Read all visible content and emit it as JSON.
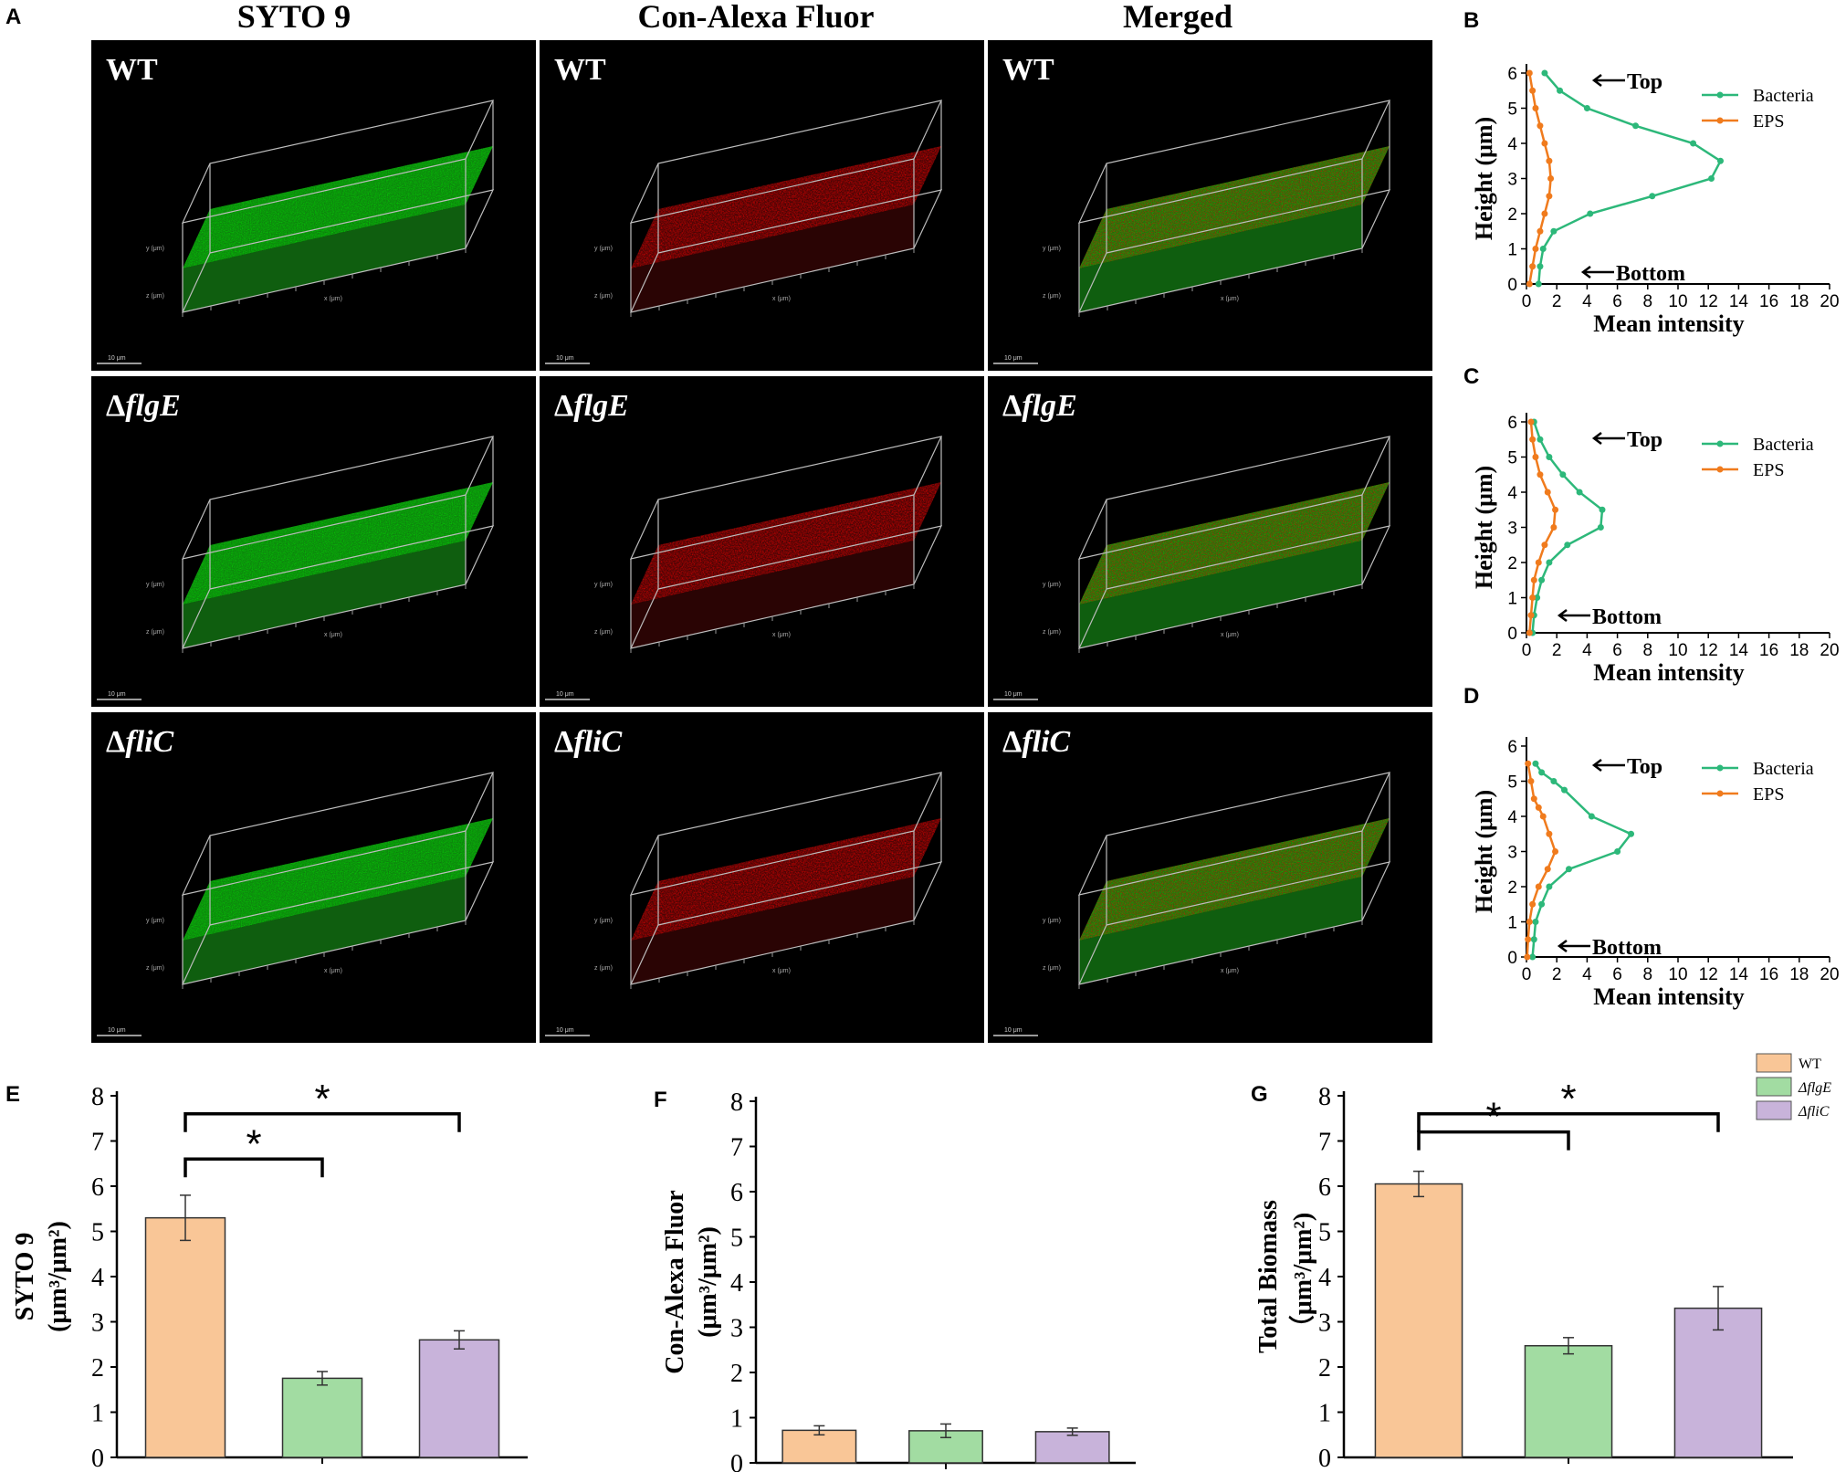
{
  "panel_letters": {
    "A": "A",
    "B": "B",
    "C": "C",
    "D": "D",
    "E": "E",
    "F": "F",
    "G": "G"
  },
  "columns": [
    "SYTO 9",
    "Con-Alexa Fluor",
    "Merged"
  ],
  "rows": [
    {
      "label": "WT",
      "italic": false
    },
    {
      "prefix": "Δ",
      "gene": "flgE",
      "italic": true
    },
    {
      "prefix": "Δ",
      "gene": "fliC",
      "italic": true
    }
  ],
  "image_labels": {
    "scale_bar": "10 μm",
    "x_axis": "x (μm)",
    "y_axis": "y (μm)",
    "z_axis": "z (μm)"
  },
  "colors": {
    "bacteria": "#2db87a",
    "eps": "#f07b1d",
    "wt": "#f9c697",
    "flgE": "#a2dca2",
    "fliC": "#c8b3da",
    "signal_green": "#1fa51f",
    "signal_red": "#9a1616"
  },
  "chart_data": [
    {
      "panel": "B",
      "type": "line",
      "title": "",
      "xlabel": "Mean intensity",
      "ylabel": "Height (μm)",
      "xlim": [
        0,
        20
      ],
      "ylim": [
        0,
        6
      ],
      "xticks": [
        0,
        2,
        4,
        6,
        8,
        10,
        12,
        14,
        16,
        18,
        20
      ],
      "yticks": [
        0,
        1,
        2,
        3,
        4,
        5,
        6
      ],
      "annotations": {
        "top": "Top",
        "bottom": "Bottom"
      },
      "series": [
        {
          "name": "Bacteria",
          "x": [
            1.2,
            2.2,
            4.0,
            7.2,
            11.0,
            12.8,
            12.2,
            8.3,
            4.2,
            1.8,
            1.1,
            0.9,
            0.8
          ],
          "y": [
            6,
            5.5,
            5,
            4.5,
            4,
            3.5,
            3,
            2.5,
            2,
            1.5,
            1,
            0.5,
            0
          ]
        },
        {
          "name": "EPS",
          "x": [
            0.2,
            0.4,
            0.6,
            0.9,
            1.2,
            1.5,
            1.6,
            1.5,
            1.2,
            0.9,
            0.6,
            0.4,
            0.2
          ],
          "y": [
            6,
            5.5,
            5,
            4.5,
            4,
            3.5,
            3,
            2.5,
            2,
            1.5,
            1,
            0.5,
            0
          ]
        }
      ]
    },
    {
      "panel": "C",
      "type": "line",
      "title": "",
      "xlabel": "Mean intensity",
      "ylabel": "Height (μm)",
      "xlim": [
        0,
        20
      ],
      "ylim": [
        0,
        6
      ],
      "xticks": [
        0,
        2,
        4,
        6,
        8,
        10,
        12,
        14,
        16,
        18,
        20
      ],
      "yticks": [
        0,
        1,
        2,
        3,
        4,
        5,
        6
      ],
      "annotations": {
        "top": "Top",
        "bottom": "Bottom"
      },
      "series": [
        {
          "name": "Bacteria",
          "x": [
            0.5,
            0.9,
            1.5,
            2.4,
            3.5,
            5.0,
            4.9,
            2.7,
            1.5,
            1.0,
            0.7,
            0.5,
            0.4
          ],
          "y": [
            6,
            5.5,
            5,
            4.5,
            4,
            3.5,
            3,
            2.5,
            2,
            1.5,
            1,
            0.5,
            0
          ]
        },
        {
          "name": "EPS",
          "x": [
            0.3,
            0.4,
            0.6,
            0.9,
            1.4,
            1.9,
            1.8,
            1.2,
            0.8,
            0.5,
            0.4,
            0.3,
            0.2
          ],
          "y": [
            6,
            5.5,
            5,
            4.5,
            4,
            3.5,
            3,
            2.5,
            2,
            1.5,
            1,
            0.5,
            0
          ]
        }
      ]
    },
    {
      "panel": "D",
      "type": "line",
      "title": "",
      "xlabel": "Mean intensity",
      "ylabel": "Height (μm)",
      "xlim": [
        0,
        20
      ],
      "ylim": [
        0,
        6
      ],
      "xticks": [
        0,
        2,
        4,
        6,
        8,
        10,
        12,
        14,
        16,
        18,
        20
      ],
      "yticks": [
        0,
        1,
        2,
        3,
        4,
        5,
        6
      ],
      "annotations": {
        "top": "Top",
        "bottom": "Bottom"
      },
      "series": [
        {
          "name": "Bacteria",
          "x": [
            0.6,
            1.0,
            1.8,
            2.5,
            4.3,
            6.9,
            6.0,
            2.8,
            1.5,
            1.0,
            0.6,
            0.5,
            0.4
          ],
          "y": [
            5.5,
            5.25,
            5,
            4.75,
            4,
            3.5,
            3,
            2.5,
            2,
            1.5,
            1,
            0.5,
            0
          ]
        },
        {
          "name": "EPS",
          "x": [
            0.1,
            0.3,
            0.5,
            0.8,
            1.1,
            1.5,
            1.9,
            1.4,
            0.8,
            0.4,
            0.2,
            0.1,
            0.05
          ],
          "y": [
            5.5,
            5,
            4.5,
            4.25,
            4,
            3.5,
            3,
            2.5,
            2,
            1.5,
            1,
            0.5,
            0
          ]
        }
      ]
    },
    {
      "panel": "E",
      "type": "bar",
      "title": "",
      "ylabel_line1": "SYTO 9",
      "ylabel_line2": "(μm³/μm²)",
      "categories": [
        "WT",
        "ΔflgE",
        "ΔfliC"
      ],
      "values": [
        5.3,
        1.75,
        2.6
      ],
      "errors": [
        0.5,
        0.15,
        0.2
      ],
      "ylim": [
        0,
        8
      ],
      "yticks": [
        0,
        1,
        2,
        3,
        4,
        5,
        6,
        7,
        8
      ],
      "significance": [
        {
          "from": 0,
          "to": 1,
          "label": "*"
        },
        {
          "from": 0,
          "to": 2,
          "label": "*"
        }
      ]
    },
    {
      "panel": "F",
      "type": "bar",
      "title": "",
      "ylabel_line1": "Con-Alexa Fluor",
      "ylabel_line2": "(μm³/μm²)",
      "categories": [
        "WT",
        "ΔflgE",
        "ΔfliC"
      ],
      "values": [
        0.72,
        0.71,
        0.69
      ],
      "errors": [
        0.1,
        0.15,
        0.08
      ],
      "ylim": [
        0,
        8
      ],
      "yticks": [
        0,
        1,
        2,
        3,
        4,
        5,
        6,
        7,
        8
      ],
      "significance": []
    },
    {
      "panel": "G",
      "type": "bar",
      "title": "",
      "ylabel_line1": "Total Biomass",
      "ylabel_line2": "（μm³/μm²)",
      "categories": [
        "WT",
        "ΔflgE",
        "ΔfliC"
      ],
      "values": [
        6.05,
        2.47,
        3.3
      ],
      "errors": [
        0.28,
        0.18,
        0.48
      ],
      "ylim": [
        0,
        8
      ],
      "yticks": [
        0,
        1,
        2,
        3,
        4,
        5,
        6,
        7,
        8
      ],
      "significance": [
        {
          "from": 0,
          "to": 1,
          "label": "*"
        },
        {
          "from": 0,
          "to": 2,
          "label": "*"
        }
      ],
      "legend": [
        {
          "label": "WT"
        },
        {
          "label": "ΔflgE"
        },
        {
          "label": "ΔfliC"
        }
      ]
    }
  ]
}
